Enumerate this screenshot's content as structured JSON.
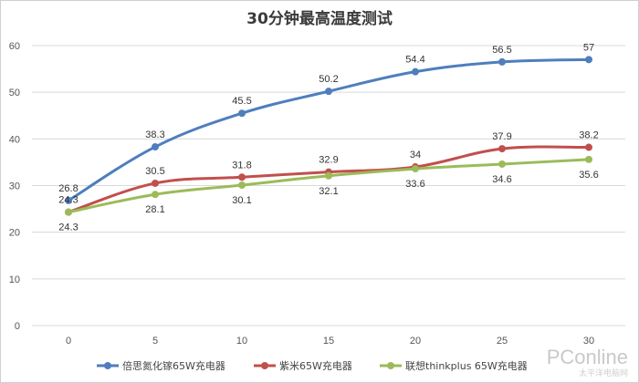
{
  "chart_data": {
    "type": "line",
    "title": "30分钟最高温度测试",
    "x": [
      0,
      5,
      10,
      15,
      20,
      25,
      30
    ],
    "ylim": [
      0,
      60
    ],
    "y_ticks": [
      0,
      10,
      20,
      30,
      40,
      50,
      60
    ],
    "grid": true,
    "legend_position": "bottom",
    "series": [
      {
        "name": "倍思氮化镓65W充电器",
        "color": "#4f7ebd",
        "values": [
          26.8,
          38.3,
          45.5,
          50.2,
          54.4,
          56.5,
          57
        ],
        "labels": [
          "26.8",
          "38.3",
          "45.5",
          "50.2",
          "54.4",
          "56.5",
          "57"
        ],
        "label_pos": "above"
      },
      {
        "name": "紫米65W充电器",
        "color": "#c0504d",
        "values": [
          24.3,
          30.5,
          31.8,
          32.9,
          34,
          37.9,
          38.2
        ],
        "labels": [
          "24.3",
          "30.5",
          "31.8",
          "32.9",
          "34",
          "37.9",
          "38.2"
        ],
        "label_pos": "above"
      },
      {
        "name": "联想thinkplus 65W充电器",
        "color": "#9bbb59",
        "values": [
          24.3,
          28.1,
          30.1,
          32.1,
          33.6,
          34.6,
          35.6
        ],
        "labels": [
          "24.3",
          "28.1",
          "30.1",
          "32.1",
          "33.6",
          "34.6",
          "35.6"
        ],
        "label_pos": "below"
      }
    ]
  },
  "watermark": {
    "main": "PConline",
    "sub": "太平洋电脑网"
  }
}
